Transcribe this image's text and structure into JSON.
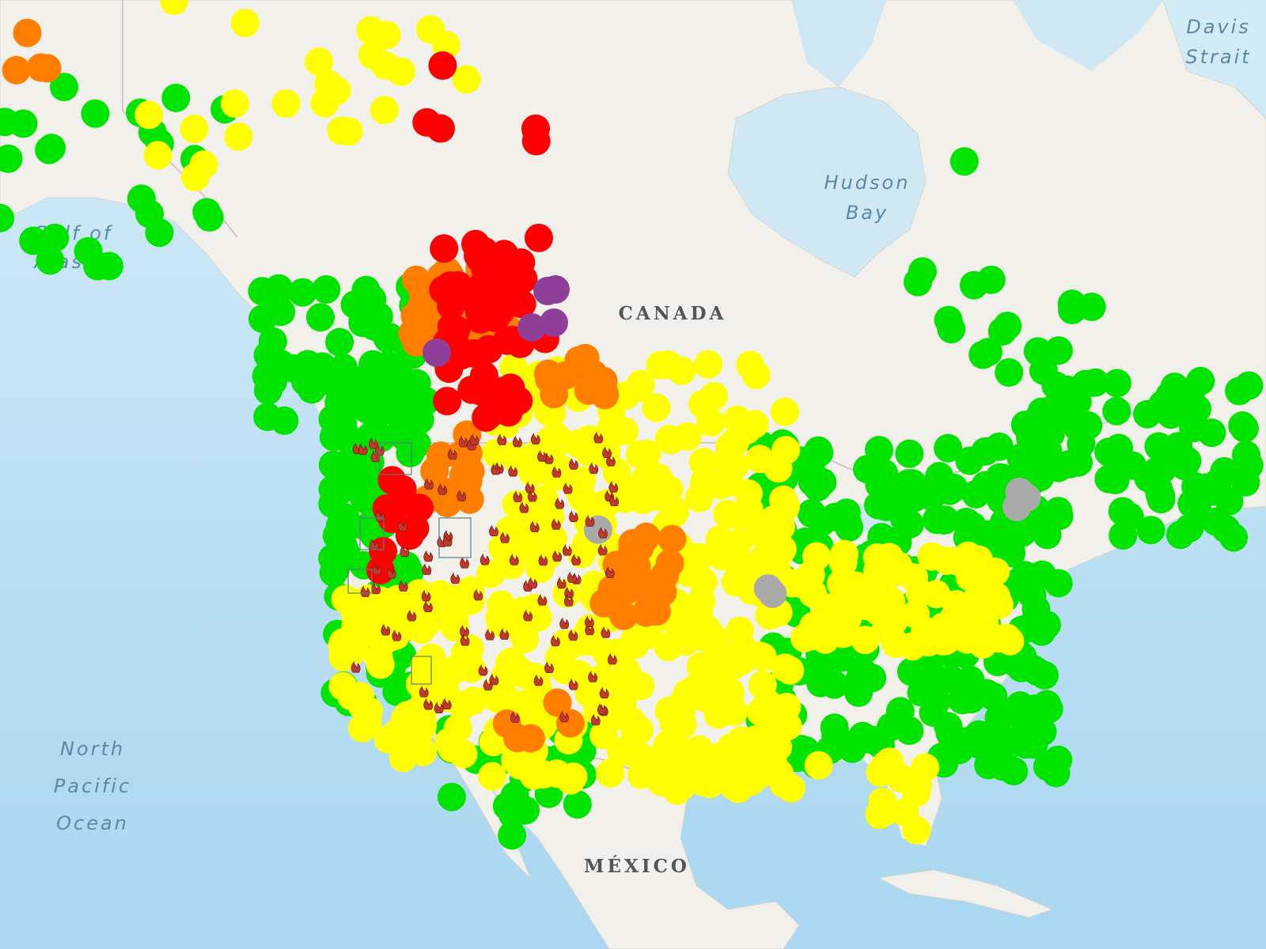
{
  "map": {
    "labels": [
      {
        "lines": [
          "Davis",
          "Strait"
        ]
      },
      {
        "lines": [
          "Hudson",
          "Bay"
        ]
      },
      {
        "lines": [
          "Gulf of",
          "Alaska"
        ]
      },
      {
        "lines": [
          "CANADA"
        ]
      },
      {
        "lines": [
          "North",
          "Pacific",
          "Ocean"
        ]
      },
      {
        "lines": [
          "MÉXICO"
        ]
      }
    ]
  }
}
